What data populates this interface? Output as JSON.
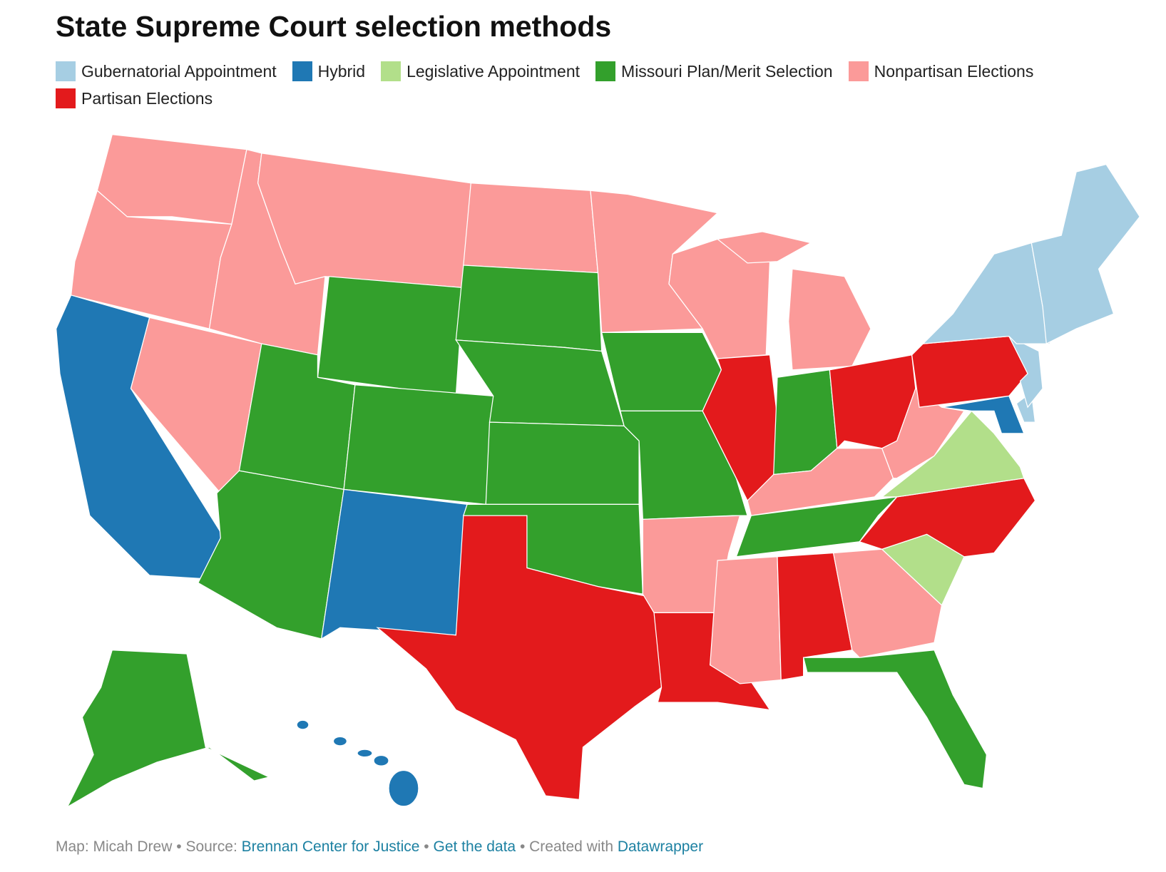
{
  "title": "State Supreme Court selection methods",
  "legend": [
    {
      "label": "Gubernatorial Appointment",
      "color": "#a6cee3"
    },
    {
      "label": "Hybrid",
      "color": "#1f78b4"
    },
    {
      "label": "Legislative Appointment",
      "color": "#b2df8a"
    },
    {
      "label": "Missouri Plan/Merit Selection",
      "color": "#33a02c"
    },
    {
      "label": "Nonpartisan Elections",
      "color": "#fb9a99"
    },
    {
      "label": "Partisan Elections",
      "color": "#e31a1c"
    }
  ],
  "footer": {
    "credit": "Map: Micah Drew",
    "separator": "•",
    "source_label": "Source:",
    "source": "Brennan Center for Justice",
    "get_data": "Get the data",
    "created_with": "Created with",
    "tool": "Datawrapper"
  }
}
